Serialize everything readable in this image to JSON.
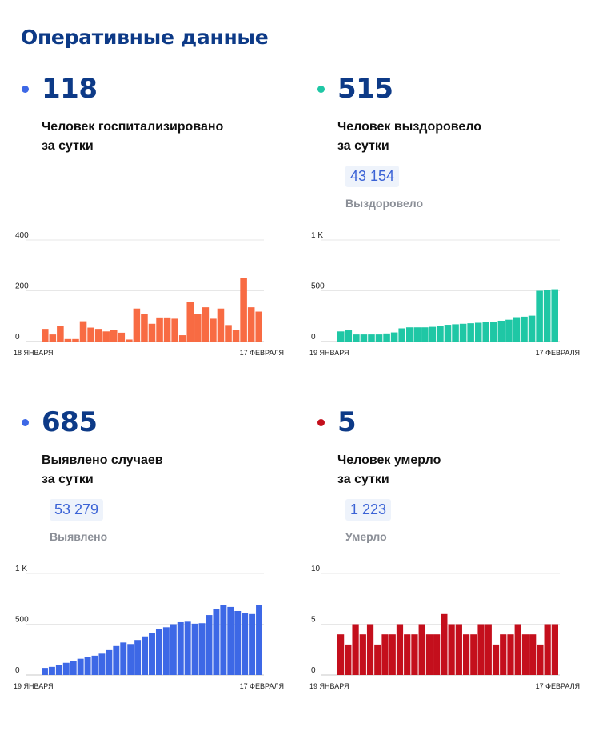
{
  "title": "Оперативные данные",
  "panels": [
    {
      "id": "hospitalized",
      "dot_color": "#3d68e6",
      "value": "118",
      "label_line1": "Человек госпитализировано",
      "label_line2": "за сутки",
      "badge": null,
      "badge_caption": null
    },
    {
      "id": "recovered",
      "dot_color": "#1fc7a5",
      "value": "515",
      "label_line1": "Человек выздоровело",
      "label_line2": "за сутки",
      "badge": "43 154",
      "badge_caption": "Выздоровело"
    },
    {
      "id": "cases",
      "dot_color": "#3d68e6",
      "value": "685",
      "label_line1": "Выявлено случаев",
      "label_line2": "за сутки",
      "badge": "53 279",
      "badge_caption": "Выявлено"
    },
    {
      "id": "deaths",
      "dot_color": "#c40f1c",
      "value": "5",
      "label_line1": "Человек умерло",
      "label_line2": "за сутки",
      "badge": "1 223",
      "badge_caption": "Умерло"
    }
  ],
  "chart_data": [
    {
      "type": "bar",
      "color": "#f86b43",
      "x_start_label": "18 ЯНВАРЯ",
      "x_end_label": "17 ФЕВРАЛЯ",
      "yticks": [
        "0",
        "200",
        "400"
      ],
      "ylim": [
        0,
        400
      ],
      "values": [
        50,
        28,
        60,
        10,
        10,
        80,
        55,
        50,
        40,
        45,
        35,
        8,
        130,
        110,
        70,
        95,
        95,
        90,
        25,
        155,
        110,
        135,
        90,
        130,
        65,
        45,
        250,
        135,
        118
      ]
    },
    {
      "type": "bar",
      "color": "#1fc7a5",
      "x_start_label": "19 ЯНВАРЯ",
      "x_end_label": "17 ФЕВРАЛЯ",
      "yticks": [
        "0",
        "500",
        "1 K"
      ],
      "ylim": [
        0,
        1000
      ],
      "values": [
        100,
        110,
        70,
        70,
        70,
        70,
        80,
        90,
        130,
        140,
        140,
        140,
        145,
        155,
        165,
        170,
        175,
        180,
        185,
        190,
        195,
        205,
        215,
        240,
        245,
        255,
        500,
        505,
        515
      ]
    },
    {
      "type": "bar",
      "color": "#3d68e6",
      "x_start_label": "19 ЯНВАРЯ",
      "x_end_label": "17 ФЕВРАЛЯ",
      "yticks": [
        "0",
        "500",
        "1 K"
      ],
      "ylim": [
        0,
        1000
      ],
      "values": [
        70,
        80,
        100,
        120,
        140,
        160,
        175,
        190,
        210,
        245,
        285,
        320,
        305,
        345,
        380,
        410,
        455,
        470,
        500,
        520,
        525,
        505,
        510,
        590,
        650,
        690,
        670,
        630,
        610,
        600,
        685
      ]
    },
    {
      "type": "bar",
      "color": "#c40f1c",
      "x_start_label": "19 ЯНВАРЯ",
      "x_end_label": "17 ФЕВРАЛЯ",
      "yticks": [
        "0",
        "5",
        "10"
      ],
      "ylim": [
        0,
        10
      ],
      "values": [
        4,
        3,
        5,
        4,
        5,
        3,
        4,
        4,
        5,
        4,
        4,
        5,
        4,
        4,
        6,
        5,
        5,
        4,
        4,
        5,
        5,
        3,
        4,
        4,
        5,
        4,
        4,
        3,
        5,
        5
      ]
    }
  ]
}
